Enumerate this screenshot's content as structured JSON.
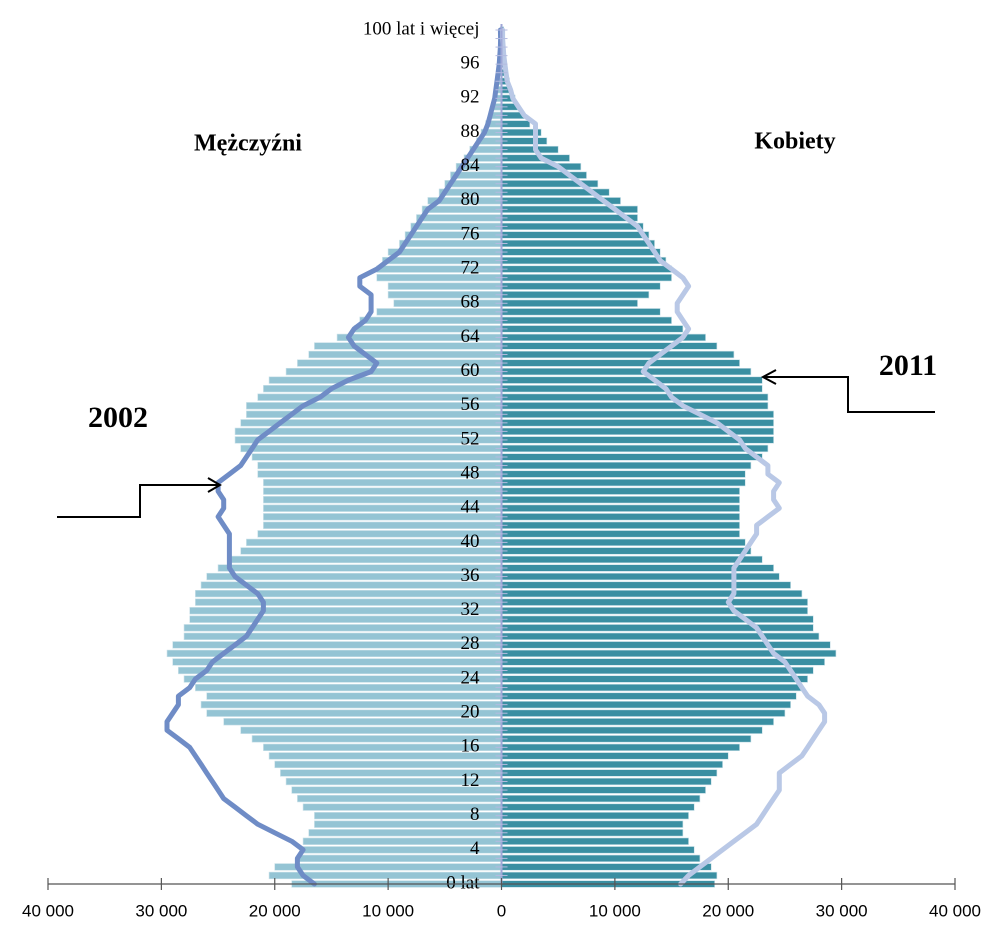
{
  "chart_data": {
    "type": "pyramid",
    "categories": [
      "0 lat",
      null,
      null,
      null,
      "4",
      null,
      null,
      null,
      "8",
      null,
      null,
      null,
      "12",
      null,
      null,
      null,
      "16",
      null,
      null,
      null,
      "20",
      null,
      null,
      null,
      "24",
      null,
      null,
      null,
      "28",
      null,
      null,
      null,
      "32",
      null,
      null,
      null,
      "36",
      null,
      null,
      null,
      "40",
      null,
      null,
      null,
      "44",
      null,
      null,
      null,
      "48",
      null,
      null,
      null,
      "52",
      null,
      null,
      null,
      "56",
      null,
      null,
      null,
      "60",
      null,
      null,
      null,
      "64",
      null,
      null,
      null,
      "68",
      null,
      null,
      null,
      "72",
      null,
      null,
      null,
      "76",
      null,
      null,
      null,
      "80",
      null,
      null,
      null,
      "84",
      null,
      null,
      null,
      "88",
      null,
      null,
      null,
      "92",
      null,
      null,
      null,
      "96",
      null,
      null,
      null,
      "100 lat i więcej"
    ],
    "series": [
      {
        "kind": "bar",
        "side": "left",
        "color": "#94c4d4",
        "values": [
          18500,
          20500,
          20000,
          18000,
          17500,
          17500,
          17000,
          16500,
          16500,
          17500,
          18000,
          18500,
          19000,
          19500,
          20000,
          20500,
          21000,
          22000,
          23000,
          24500,
          26000,
          26500,
          26000,
          27000,
          28000,
          28500,
          29000,
          29500,
          29000,
          28000,
          28000,
          27500,
          27500,
          27000,
          27000,
          26500,
          26000,
          25000,
          24000,
          23000,
          22500,
          21500,
          21000,
          21000,
          21000,
          21000,
          21000,
          21000,
          21500,
          21500,
          22000,
          23000,
          23500,
          23500,
          23000,
          22500,
          22500,
          21500,
          21000,
          20500,
          19000,
          18000,
          17000,
          16500,
          14500,
          13000,
          12500,
          11000,
          9500,
          10000,
          10000,
          11000,
          11000,
          10500,
          10000,
          9000,
          8500,
          8000,
          7500,
          7000,
          6500,
          5500,
          5000,
          4500,
          4000,
          3300,
          2800,
          2200,
          1800,
          1400,
          1100,
          800,
          600,
          400,
          300,
          200,
          150,
          100,
          80,
          50,
          100
        ]
      },
      {
        "kind": "bar",
        "side": "right",
        "color": "#3a8fa2",
        "values": [
          18800,
          19000,
          18500,
          17500,
          17000,
          16500,
          16000,
          16000,
          16500,
          17000,
          17500,
          18000,
          18500,
          19000,
          19500,
          20000,
          21000,
          22000,
          23000,
          24000,
          25000,
          25500,
          26000,
          26500,
          27000,
          27500,
          28500,
          29500,
          29000,
          28000,
          27500,
          27500,
          27000,
          27000,
          26500,
          25500,
          24500,
          24000,
          23000,
          22000,
          21500,
          21000,
          21000,
          21000,
          21000,
          21000,
          21000,
          21500,
          21500,
          22000,
          23000,
          23500,
          24000,
          24000,
          24000,
          24000,
          23500,
          23500,
          23000,
          23000,
          22000,
          21000,
          20500,
          19000,
          18000,
          16000,
          15000,
          14000,
          12000,
          13000,
          14000,
          15000,
          15000,
          14500,
          14000,
          13500,
          13000,
          12500,
          12000,
          12000,
          10500,
          9500,
          8500,
          7500,
          7000,
          6000,
          5000,
          4000,
          3500,
          2500,
          2000,
          1500,
          1200,
          900,
          700,
          500,
          350,
          250,
          150,
          100,
          200
        ]
      },
      {
        "kind": "line",
        "side": "left",
        "color": "#6f8cc6",
        "values": [
          16500,
          17500,
          18000,
          18000,
          17500,
          18500,
          20000,
          21500,
          22500,
          23500,
          24500,
          25000,
          25500,
          26000,
          26500,
          27000,
          27500,
          28500,
          29500,
          29500,
          29000,
          28500,
          28500,
          27500,
          27000,
          26000,
          25500,
          24500,
          23500,
          22500,
          22000,
          21500,
          21000,
          21000,
          21500,
          22500,
          23500,
          24000,
          24000,
          24000,
          24000,
          24000,
          24500,
          25000,
          24500,
          24500,
          25000,
          25000,
          24000,
          23000,
          22500,
          22000,
          21500,
          20500,
          19500,
          18500,
          17500,
          16000,
          15000,
          13500,
          11500,
          11000,
          12000,
          13000,
          13500,
          13000,
          12000,
          11500,
          11500,
          11500,
          12500,
          12500,
          11000,
          10000,
          9000,
          8500,
          8000,
          7500,
          7000,
          6500,
          5500,
          5000,
          4500,
          4000,
          3500,
          3000,
          2500,
          2000,
          1500,
          1200,
          1000,
          800,
          600,
          500,
          400,
          300,
          200,
          150,
          100,
          80,
          100
        ]
      },
      {
        "kind": "line",
        "side": "right",
        "color": "#b9c8e6",
        "values": [
          15800,
          16500,
          17500,
          18500,
          19500,
          20500,
          21500,
          22500,
          23000,
          23500,
          24000,
          24500,
          24500,
          24500,
          25500,
          26500,
          27000,
          27500,
          28000,
          28500,
          28500,
          28000,
          27000,
          26500,
          26000,
          25500,
          25000,
          24000,
          23500,
          23000,
          22500,
          21500,
          20500,
          20000,
          20500,
          20500,
          20500,
          20500,
          21000,
          21500,
          22000,
          22500,
          22500,
          23500,
          24500,
          24000,
          24000,
          24500,
          23500,
          23500,
          22500,
          21500,
          21000,
          20000,
          19000,
          17500,
          16000,
          15000,
          14500,
          13500,
          12500,
          13000,
          14000,
          15000,
          16000,
          16500,
          16000,
          15500,
          15500,
          16000,
          16500,
          16000,
          15000,
          14000,
          13500,
          13000,
          12500,
          12000,
          11000,
          10000,
          9000,
          8000,
          7000,
          6000,
          5000,
          3500,
          3000,
          3000,
          3000,
          3000,
          2000,
          1500,
          1000,
          800,
          500,
          400,
          300,
          200,
          150,
          100,
          100
        ]
      }
    ],
    "xlim": [
      -40000,
      40000
    ],
    "xticks": [
      {
        "value": -40000,
        "label": "40 000"
      },
      {
        "value": -30000,
        "label": "30 000"
      },
      {
        "value": -20000,
        "label": "20 000"
      },
      {
        "value": -10000,
        "label": "10 000"
      },
      0,
      {
        "value": 10000,
        "label": "10 000"
      },
      {
        "value": 20000,
        "label": "20 000"
      },
      {
        "value": 30000,
        "label": "30 000"
      },
      {
        "value": 40000,
        "label": "40 000"
      }
    ],
    "annotations": [
      "Mężczyźni",
      "Kobiety",
      "2002",
      "2011"
    ]
  }
}
